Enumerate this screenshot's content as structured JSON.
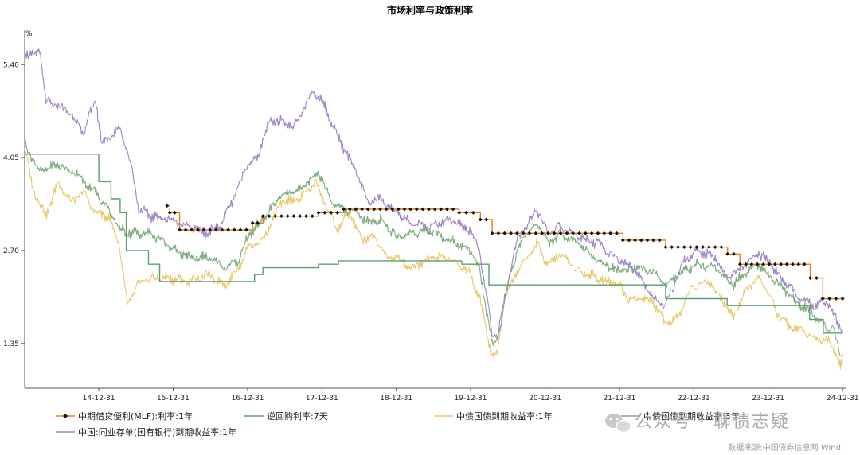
{
  "chart_data": {
    "type": "line",
    "title": "市场利率与政策利率",
    "y_unit": "%",
    "yticks": [
      1.35,
      2.7,
      4.05,
      5.4
    ],
    "ytick_labels": [
      "1.35",
      "2.70",
      "4.05",
      "5.40"
    ],
    "ylim": [
      0.7,
      5.9
    ],
    "xlim": [
      "2014-01-01",
      "2025-01-15"
    ],
    "xticks": [
      {
        "date": "2014-12-31",
        "label": "14-12-31"
      },
      {
        "date": "2015-12-31",
        "label": "15-12-31"
      },
      {
        "date": "2016-12-31",
        "label": "16-12-31"
      },
      {
        "date": "2017-12-31",
        "label": "17-12-31"
      },
      {
        "date": "2018-12-31",
        "label": "18-12-31"
      },
      {
        "date": "2019-12-31",
        "label": "19-12-31"
      },
      {
        "date": "2020-12-31",
        "label": "20-12-31"
      },
      {
        "date": "2021-12-31",
        "label": "21-12-31"
      },
      {
        "date": "2022-12-31",
        "label": "22-12-31"
      },
      {
        "date": "2023-12-31",
        "label": "23-12-31"
      },
      {
        "date": "2024-12-31",
        "label": "24-12-31"
      }
    ],
    "grid": false,
    "legend_position": "bottom",
    "series": [
      {
        "name": "中期借贷便利(MLF):利率:1年",
        "color": "#e8801b",
        "marker": "diamond",
        "marker_color": "#111111",
        "step": true,
        "points": [
          [
            "2015-12-01",
            3.35
          ],
          [
            "2015-12-15",
            3.25
          ],
          [
            "2016-02-01",
            3.0
          ],
          [
            "2017-01-24",
            3.1
          ],
          [
            "2017-03-16",
            3.2
          ],
          [
            "2017-12-14",
            3.25
          ],
          [
            "2018-04-17",
            3.3
          ],
          [
            "2019-11-05",
            3.25
          ],
          [
            "2020-02-17",
            3.15
          ],
          [
            "2020-04-15",
            2.95
          ],
          [
            "2022-01-17",
            2.85
          ],
          [
            "2022-08-15",
            2.75
          ],
          [
            "2023-06-15",
            2.65
          ],
          [
            "2023-08-15",
            2.5
          ],
          [
            "2024-07-25",
            2.3
          ],
          [
            "2024-09-25",
            2.0
          ],
          [
            "2024-12-31",
            2.0
          ]
        ]
      },
      {
        "name": "逆回购利率:7天",
        "color": "#5f9e6e",
        "step": true,
        "points": [
          [
            "2014-01-01",
            4.1
          ],
          [
            "2014-12-31",
            3.7
          ],
          [
            "2015-03-01",
            3.45
          ],
          [
            "2015-04-15",
            3.25
          ],
          [
            "2015-05-15",
            2.7
          ],
          [
            "2015-09-01",
            2.5
          ],
          [
            "2015-10-26",
            2.25
          ],
          [
            "2017-02-03",
            2.35
          ],
          [
            "2017-03-16",
            2.45
          ],
          [
            "2017-12-14",
            2.5
          ],
          [
            "2018-03-22",
            2.55
          ],
          [
            "2019-11-18",
            2.5
          ],
          [
            "2020-03-30",
            2.2
          ],
          [
            "2022-08-15",
            2.0
          ],
          [
            "2023-06-13",
            1.9
          ],
          [
            "2024-07-22",
            1.7
          ],
          [
            "2024-09-27",
            1.5
          ],
          [
            "2024-12-31",
            1.5
          ]
        ]
      },
      {
        "name": "中债国债到期收益率:1年",
        "color": "#e8c96e",
        "points": [
          [
            "2014-01-01",
            4.2
          ],
          [
            "2014-02-10",
            3.6
          ],
          [
            "2014-03-15",
            3.4
          ],
          [
            "2014-04-15",
            3.2
          ],
          [
            "2014-06-15",
            3.7
          ],
          [
            "2014-08-15",
            3.4
          ],
          [
            "2014-10-15",
            3.55
          ],
          [
            "2014-12-15",
            3.25
          ],
          [
            "2015-02-15",
            3.2
          ],
          [
            "2015-04-10",
            2.8
          ],
          [
            "2015-05-20",
            1.9
          ],
          [
            "2015-07-10",
            2.2
          ],
          [
            "2015-09-10",
            2.3
          ],
          [
            "2015-12-15",
            2.3
          ],
          [
            "2016-03-15",
            2.25
          ],
          [
            "2016-06-15",
            2.35
          ],
          [
            "2016-09-15",
            2.2
          ],
          [
            "2016-11-15",
            2.45
          ],
          [
            "2016-12-31",
            2.75
          ],
          [
            "2017-03-15",
            2.85
          ],
          [
            "2017-06-15",
            3.4
          ],
          [
            "2017-09-15",
            3.45
          ],
          [
            "2017-11-30",
            3.7
          ],
          [
            "2018-01-20",
            3.35
          ],
          [
            "2018-03-15",
            3.0
          ],
          [
            "2018-05-15",
            3.25
          ],
          [
            "2018-07-15",
            2.85
          ],
          [
            "2018-09-15",
            2.9
          ],
          [
            "2018-11-15",
            2.6
          ],
          [
            "2018-12-31",
            2.6
          ],
          [
            "2019-03-15",
            2.45
          ],
          [
            "2019-06-15",
            2.6
          ],
          [
            "2019-09-15",
            2.6
          ],
          [
            "2019-12-31",
            2.35
          ],
          [
            "2020-02-15",
            2.0
          ],
          [
            "2020-04-15",
            1.15
          ],
          [
            "2020-05-10",
            1.2
          ],
          [
            "2020-06-15",
            2.0
          ],
          [
            "2020-08-15",
            2.4
          ],
          [
            "2020-11-20",
            2.8
          ],
          [
            "2021-01-15",
            2.5
          ],
          [
            "2021-03-15",
            2.65
          ],
          [
            "2021-06-15",
            2.4
          ],
          [
            "2021-09-15",
            2.3
          ],
          [
            "2021-12-31",
            2.2
          ],
          [
            "2022-02-15",
            2.0
          ],
          [
            "2022-04-15",
            2.0
          ],
          [
            "2022-06-15",
            1.95
          ],
          [
            "2022-08-15",
            1.65
          ],
          [
            "2022-10-15",
            1.7
          ],
          [
            "2022-12-15",
            2.15
          ],
          [
            "2023-03-15",
            2.25
          ],
          [
            "2023-05-15",
            2.0
          ],
          [
            "2023-07-15",
            1.75
          ],
          [
            "2023-09-15",
            2.15
          ],
          [
            "2023-11-15",
            2.3
          ],
          [
            "2023-12-31",
            2.1
          ],
          [
            "2024-02-15",
            1.8
          ],
          [
            "2024-04-15",
            1.6
          ],
          [
            "2024-06-15",
            1.55
          ],
          [
            "2024-08-15",
            1.4
          ],
          [
            "2024-10-15",
            1.4
          ],
          [
            "2024-11-15",
            1.3
          ],
          [
            "2024-12-20",
            1.0
          ],
          [
            "2024-12-31",
            1.1
          ]
        ]
      },
      {
        "name": "中债国债到期收益率:3年",
        "color": "#7cac7e",
        "points": [
          [
            "2014-01-01",
            4.25
          ],
          [
            "2014-03-15",
            3.85
          ],
          [
            "2014-06-15",
            3.95
          ],
          [
            "2014-09-15",
            3.8
          ],
          [
            "2014-12-15",
            3.55
          ],
          [
            "2015-02-15",
            3.3
          ],
          [
            "2015-04-15",
            3.0
          ],
          [
            "2015-06-15",
            2.95
          ],
          [
            "2015-09-15",
            2.95
          ],
          [
            "2015-12-15",
            2.75
          ],
          [
            "2016-03-15",
            2.6
          ],
          [
            "2016-06-15",
            2.6
          ],
          [
            "2016-09-15",
            2.45
          ],
          [
            "2016-11-15",
            2.55
          ],
          [
            "2016-12-31",
            2.9
          ],
          [
            "2017-03-15",
            3.15
          ],
          [
            "2017-06-15",
            3.5
          ],
          [
            "2017-09-15",
            3.6
          ],
          [
            "2017-12-15",
            3.85
          ],
          [
            "2018-02-15",
            3.4
          ],
          [
            "2018-04-15",
            3.3
          ],
          [
            "2018-06-15",
            3.25
          ],
          [
            "2018-08-15",
            3.1
          ],
          [
            "2018-10-15",
            3.15
          ],
          [
            "2018-12-31",
            2.9
          ],
          [
            "2019-03-15",
            2.95
          ],
          [
            "2019-06-15",
            3.0
          ],
          [
            "2019-09-15",
            2.85
          ],
          [
            "2019-12-31",
            2.7
          ],
          [
            "2020-02-15",
            2.4
          ],
          [
            "2020-04-15",
            1.35
          ],
          [
            "2020-05-10",
            1.4
          ],
          [
            "2020-07-15",
            2.4
          ],
          [
            "2020-09-15",
            2.9
          ],
          [
            "2020-11-20",
            3.1
          ],
          [
            "2021-01-15",
            2.8
          ],
          [
            "2021-03-15",
            2.95
          ],
          [
            "2021-06-15",
            2.8
          ],
          [
            "2021-09-15",
            2.55
          ],
          [
            "2021-12-31",
            2.4
          ],
          [
            "2022-03-15",
            2.45
          ],
          [
            "2022-06-15",
            2.4
          ],
          [
            "2022-08-15",
            2.2
          ],
          [
            "2022-11-15",
            2.4
          ],
          [
            "2023-01-15",
            2.5
          ],
          [
            "2023-04-15",
            2.45
          ],
          [
            "2023-07-15",
            2.2
          ],
          [
            "2023-09-15",
            2.4
          ],
          [
            "2023-11-15",
            2.5
          ],
          [
            "2023-12-31",
            2.35
          ],
          [
            "2024-03-15",
            2.15
          ],
          [
            "2024-05-15",
            1.95
          ],
          [
            "2024-07-15",
            1.85
          ],
          [
            "2024-09-15",
            1.65
          ],
          [
            "2024-11-15",
            1.55
          ],
          [
            "2024-12-20",
            1.15
          ],
          [
            "2024-12-31",
            1.2
          ]
        ]
      },
      {
        "name": "中国:同业存单(国有银行)到期收益率:1年",
        "color": "#9f84c6",
        "points": [
          [
            "2014-01-01",
            5.6
          ],
          [
            "2014-02-15",
            5.5
          ],
          [
            "2014-03-15",
            5.65
          ],
          [
            "2014-04-15",
            4.85
          ],
          [
            "2014-06-15",
            4.8
          ],
          [
            "2014-08-15",
            4.7
          ],
          [
            "2014-10-15",
            4.4
          ],
          [
            "2014-12-15",
            4.9
          ],
          [
            "2015-01-15",
            4.25
          ],
          [
            "2015-03-15",
            4.4
          ],
          [
            "2015-04-15",
            4.5
          ],
          [
            "2015-06-15",
            3.85
          ],
          [
            "2015-07-15",
            3.3
          ],
          [
            "2015-09-15",
            3.2
          ],
          [
            "2015-12-15",
            3.15
          ],
          [
            "2016-03-15",
            3.05
          ],
          [
            "2016-06-15",
            2.95
          ],
          [
            "2016-08-15",
            3.05
          ],
          [
            "2016-10-15",
            3.4
          ],
          [
            "2016-12-31",
            3.95
          ],
          [
            "2017-02-15",
            4.05
          ],
          [
            "2017-04-15",
            4.55
          ],
          [
            "2017-06-15",
            4.6
          ],
          [
            "2017-08-15",
            4.5
          ],
          [
            "2017-09-20",
            4.7
          ],
          [
            "2017-11-15",
            5.0
          ],
          [
            "2017-12-31",
            4.9
          ],
          [
            "2018-02-15",
            4.55
          ],
          [
            "2018-04-15",
            4.2
          ],
          [
            "2018-06-15",
            3.85
          ],
          [
            "2018-08-15",
            3.4
          ],
          [
            "2018-10-15",
            3.45
          ],
          [
            "2018-12-31",
            3.25
          ],
          [
            "2019-03-15",
            3.1
          ],
          [
            "2019-06-15",
            3.05
          ],
          [
            "2019-09-15",
            3.15
          ],
          [
            "2019-12-31",
            3.0
          ],
          [
            "2020-02-15",
            2.65
          ],
          [
            "2020-04-15",
            1.5
          ],
          [
            "2020-05-10",
            1.45
          ],
          [
            "2020-06-15",
            2.0
          ],
          [
            "2020-08-15",
            2.85
          ],
          [
            "2020-11-20",
            3.3
          ],
          [
            "2021-01-15",
            2.95
          ],
          [
            "2021-03-15",
            3.05
          ],
          [
            "2021-06-15",
            2.9
          ],
          [
            "2021-09-15",
            2.8
          ],
          [
            "2021-12-31",
            2.55
          ],
          [
            "2022-03-15",
            2.45
          ],
          [
            "2022-06-15",
            2.0
          ],
          [
            "2022-08-15",
            1.9
          ],
          [
            "2022-11-15",
            2.55
          ],
          [
            "2023-01-15",
            2.7
          ],
          [
            "2023-04-15",
            2.6
          ],
          [
            "2023-06-15",
            2.3
          ],
          [
            "2023-09-15",
            2.5
          ],
          [
            "2023-11-15",
            2.65
          ],
          [
            "2023-12-31",
            2.55
          ],
          [
            "2024-03-15",
            2.25
          ],
          [
            "2024-06-15",
            2.0
          ],
          [
            "2024-08-15",
            1.9
          ],
          [
            "2024-10-15",
            1.95
          ],
          [
            "2024-11-15",
            1.8
          ],
          [
            "2024-12-10",
            1.6
          ],
          [
            "2024-12-31",
            1.55
          ]
        ]
      }
    ]
  },
  "legend": {
    "items": [
      {
        "label": "中期借贷便利(MLF):利率:1年",
        "color": "#e8801b",
        "marker": "diamond"
      },
      {
        "label": "逆回购利率:7天",
        "color": "#5f9e6e",
        "marker": "none"
      },
      {
        "label": "中债国债到期收益率:1年",
        "color": "#e8c96e",
        "marker": "none"
      },
      {
        "label": "中债国债到期收益率:3年",
        "color": "#7cac7e",
        "marker": "none"
      },
      {
        "label": "中国:同业存单(国有银行)到期收益率:1年",
        "color": "#9f84c6",
        "marker": "none"
      }
    ]
  },
  "watermark": {
    "icon": "wechat-icon",
    "text": "公众号 · 聊债志疑"
  },
  "footer": {
    "source": "数据来源:中国债券信息网 Wind"
  }
}
